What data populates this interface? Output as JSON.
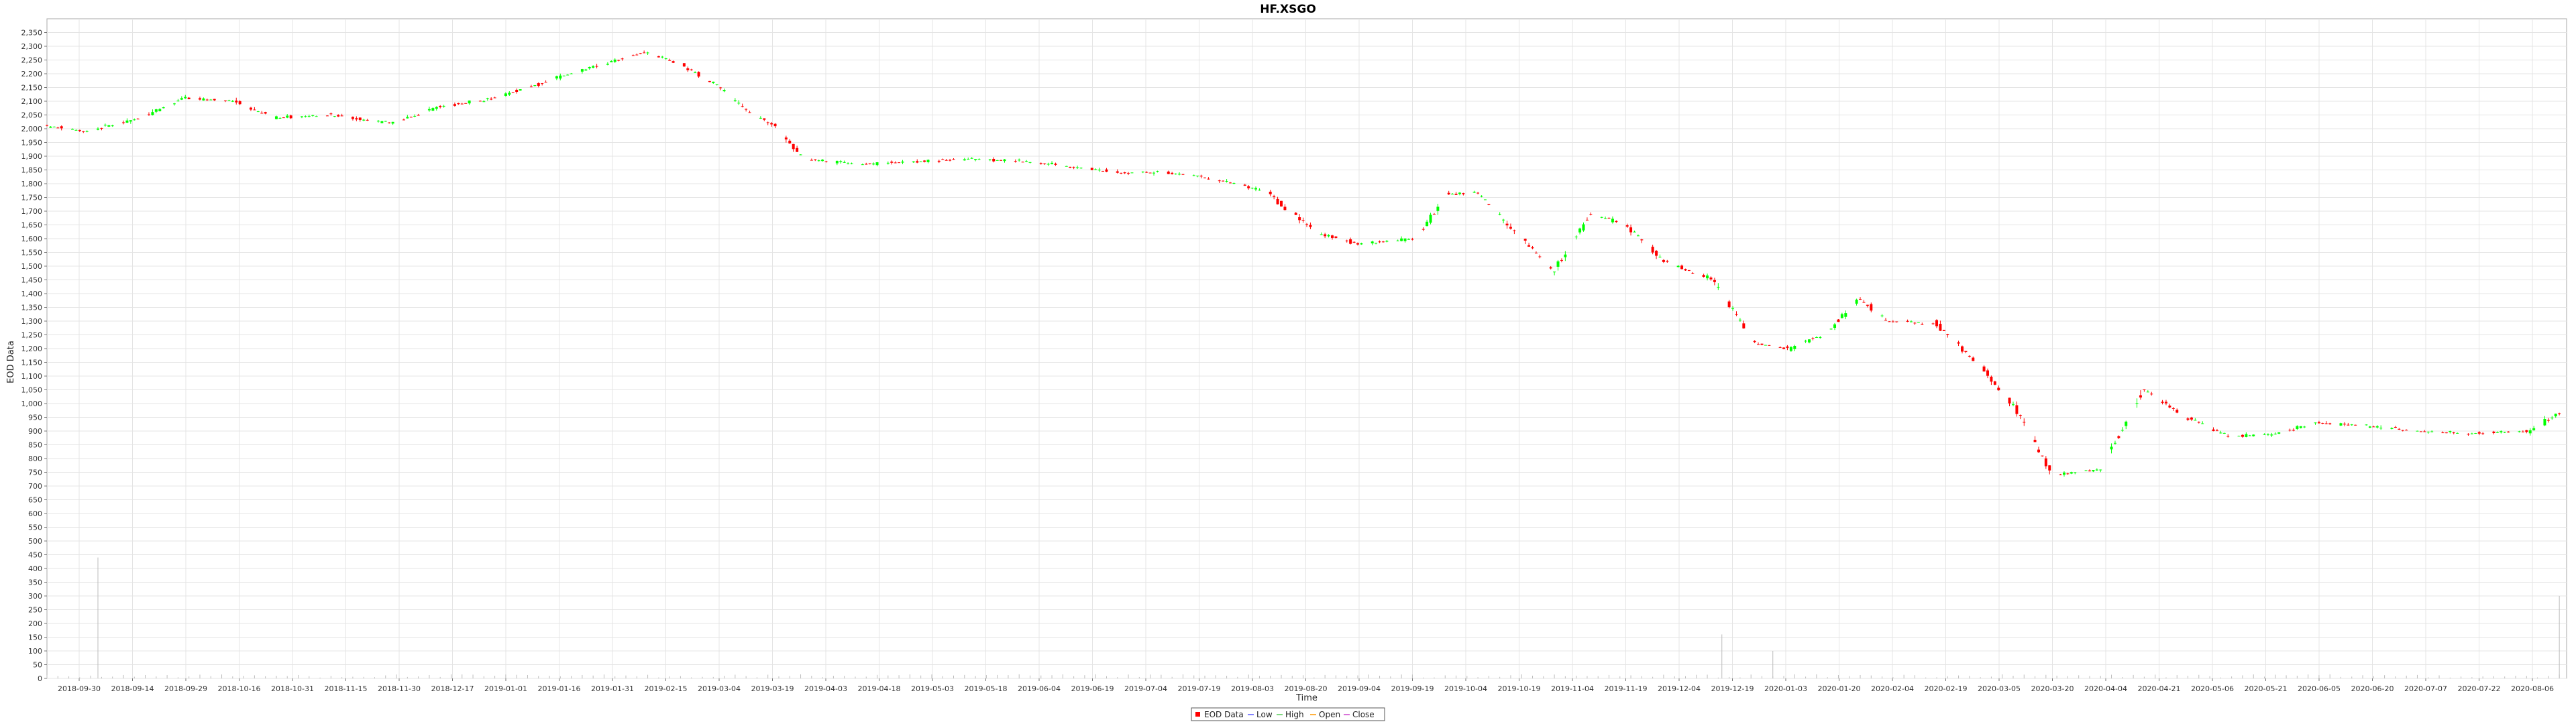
{
  "chart_data": {
    "type": "candlestick",
    "title": "HF.XSGO",
    "xlabel": "Time",
    "ylabel": "EOD Data",
    "ylim": [
      0,
      2400
    ],
    "y_ticks": [
      0,
      50,
      100,
      150,
      200,
      250,
      300,
      350,
      400,
      450,
      500,
      550,
      600,
      650,
      700,
      750,
      800,
      850,
      900,
      950,
      1000,
      1050,
      1100,
      1150,
      1200,
      1250,
      1300,
      1350,
      1400,
      1450,
      1500,
      1550,
      1600,
      1650,
      1700,
      1750,
      1800,
      1850,
      1900,
      1950,
      2000,
      2050,
      2100,
      2150,
      2200,
      2250,
      2300,
      2350
    ],
    "x_range": [
      "2018-09-24",
      "2020-08-16"
    ],
    "x_ticks": [
      "2018-09-30",
      "2018-09-14",
      "2018-09-29",
      "2018-10-16",
      "2018-10-31",
      "2018-11-15",
      "2018-11-30",
      "2018-12-17",
      "2019-01-01",
      "2019-01-16",
      "2019-01-31",
      "2019-02-15",
      "2019-03-04",
      "2019-03-19",
      "2019-04-03",
      "2019-04-18",
      "2019-05-03",
      "2019-05-18",
      "2019-06-04",
      "2019-06-19",
      "2019-07-04",
      "2019-07-19",
      "2019-08-03",
      "2019-08-20",
      "2019-09-04",
      "2019-09-19",
      "2019-10-04",
      "2019-10-19",
      "2019-11-04",
      "2019-11-19",
      "2019-12-04",
      "2019-12-19",
      "2020-01-03",
      "2020-01-20",
      "2020-02-04",
      "2020-02-19",
      "2020-03-05",
      "2020-03-20",
      "2020-04-04",
      "2020-04-21",
      "2020-05-06",
      "2020-05-21",
      "2020-06-05",
      "2020-06-20",
      "2020-07-07",
      "2020-07-22",
      "2020-08-06"
    ],
    "grid": true,
    "legend": {
      "position": "bottom-center",
      "entries": [
        "EOD Data",
        "Low",
        "High",
        "Open",
        "Close"
      ]
    },
    "colors": {
      "up": "#00ff00",
      "down": "#ff0000",
      "grid": "#e4e4e4",
      "volume": "#bbbbbb",
      "low": "#5b5bff",
      "high": "#55cc55",
      "open": "#ff9900",
      "close": "#cc44cc"
    },
    "price_anchors": [
      [
        "2018-09-24",
        2010
      ],
      [
        "2018-10-05",
        1990
      ],
      [
        "2018-10-20",
        2040
      ],
      [
        "2018-11-01",
        2110
      ],
      [
        "2018-11-15",
        2100
      ],
      [
        "2018-11-25",
        2040
      ],
      [
        "2018-12-10",
        2050
      ],
      [
        "2018-12-28",
        2020
      ],
      [
        "2019-01-10",
        2080
      ],
      [
        "2019-01-25",
        2110
      ],
      [
        "2019-02-10",
        2180
      ],
      [
        "2019-02-25",
        2240
      ],
      [
        "2019-03-08",
        2280
      ],
      [
        "2019-03-18",
        2230
      ],
      [
        "2019-03-28",
        2150
      ],
      [
        "2019-04-05",
        2060
      ],
      [
        "2019-04-12",
        2010
      ],
      [
        "2019-04-20",
        1890
      ],
      [
        "2019-05-05",
        1870
      ],
      [
        "2019-05-20",
        1880
      ],
      [
        "2019-06-05",
        1890
      ],
      [
        "2019-06-20",
        1880
      ],
      [
        "2019-07-04",
        1860
      ],
      [
        "2019-07-15",
        1840
      ],
      [
        "2019-07-29",
        1840
      ],
      [
        "2019-08-10",
        1820
      ],
      [
        "2019-08-25",
        1770
      ],
      [
        "2019-09-08",
        1620
      ],
      [
        "2019-09-20",
        1580
      ],
      [
        "2019-10-05",
        1600
      ],
      [
        "2019-10-14",
        1760
      ],
      [
        "2019-10-22",
        1770
      ],
      [
        "2019-11-01",
        1630
      ],
      [
        "2019-11-12",
        1480
      ],
      [
        "2019-11-22",
        1690
      ],
      [
        "2019-12-02",
        1650
      ],
      [
        "2019-12-12",
        1520
      ],
      [
        "2019-12-26",
        1450
      ],
      [
        "2020-01-06",
        1220
      ],
      [
        "2020-01-16",
        1200
      ],
      [
        "2020-01-26",
        1260
      ],
      [
        "2020-02-04",
        1380
      ],
      [
        "2020-02-12",
        1300
      ],
      [
        "2020-02-25",
        1290
      ],
      [
        "2020-03-10",
        1110
      ],
      [
        "2020-03-18",
        980
      ],
      [
        "2020-03-28",
        740
      ],
      [
        "2020-04-10",
        760
      ],
      [
        "2020-04-22",
        1050
      ],
      [
        "2020-05-04",
        950
      ],
      [
        "2020-05-16",
        880
      ],
      [
        "2020-05-28",
        890
      ],
      [
        "2020-06-08",
        930
      ],
      [
        "2020-06-22",
        920
      ],
      [
        "2020-07-06",
        900
      ],
      [
        "2020-07-20",
        890
      ],
      [
        "2020-08-06",
        900
      ],
      [
        "2020-08-16",
        980
      ]
    ],
    "volume_spikes": [
      [
        "2018-10-08",
        440
      ],
      [
        "2019-12-28",
        160
      ],
      [
        "2020-01-11",
        100
      ],
      [
        "2020-08-14",
        300
      ]
    ]
  }
}
